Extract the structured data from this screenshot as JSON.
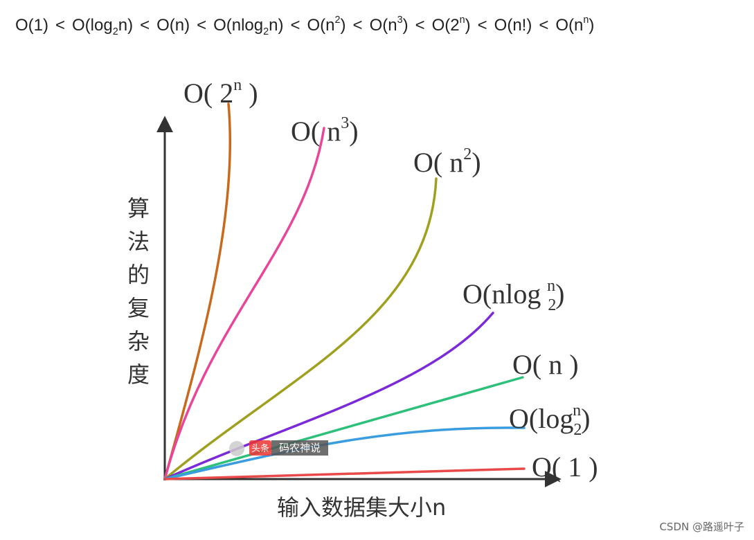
{
  "formula": {
    "separator": "<",
    "terms": [
      [
        {
          "t": "O(1)"
        }
      ],
      [
        {
          "t": "O(log"
        },
        {
          "sub": "2"
        },
        {
          "t": "n)"
        }
      ],
      [
        {
          "t": "O(n)"
        }
      ],
      [
        {
          "t": "O(nlog"
        },
        {
          "sub": "2"
        },
        {
          "t": "n)"
        }
      ],
      [
        {
          "t": "O(n"
        },
        {
          "sup": "2"
        },
        {
          "t": ")"
        }
      ],
      [
        {
          "t": "O(n"
        },
        {
          "sup": "3"
        },
        {
          "t": ")"
        }
      ],
      [
        {
          "t": "O(2"
        },
        {
          "sup": "n"
        },
        {
          "t": ")"
        }
      ],
      [
        {
          "t": "O(n!)"
        }
      ],
      [
        {
          "t": "O(n"
        },
        {
          "sup": "n"
        },
        {
          "t": ")"
        }
      ]
    ]
  },
  "curve_labels": [
    [
      {
        "t": "O( 2"
      },
      {
        "sup": "n"
      },
      {
        "t": " )"
      }
    ],
    [
      {
        "t": "O( n"
      },
      {
        "sup": "3"
      },
      {
        "t": ")"
      }
    ],
    [
      {
        "t": "O( n"
      },
      {
        "sup": "2"
      },
      {
        "t": ")"
      }
    ],
    [
      {
        "t": "O(nlog "
      },
      {
        "sub": "2"
      },
      {
        "sup": "n"
      },
      {
        "t": ")"
      }
    ],
    [
      {
        "t": "O( n )"
      }
    ],
    [
      {
        "t": "O(log"
      },
      {
        "sub": "2"
      },
      {
        "sup": "n"
      },
      {
        "t": ")"
      }
    ],
    [
      {
        "t": "O( 1 )"
      }
    ]
  ],
  "y_axis_label": "算法的复杂度",
  "x_axis_label": "输入数据集大小n",
  "watermark": {
    "tag": "头条",
    "name": "码农神说"
  },
  "footer": "CSDN @路遥叶子"
}
